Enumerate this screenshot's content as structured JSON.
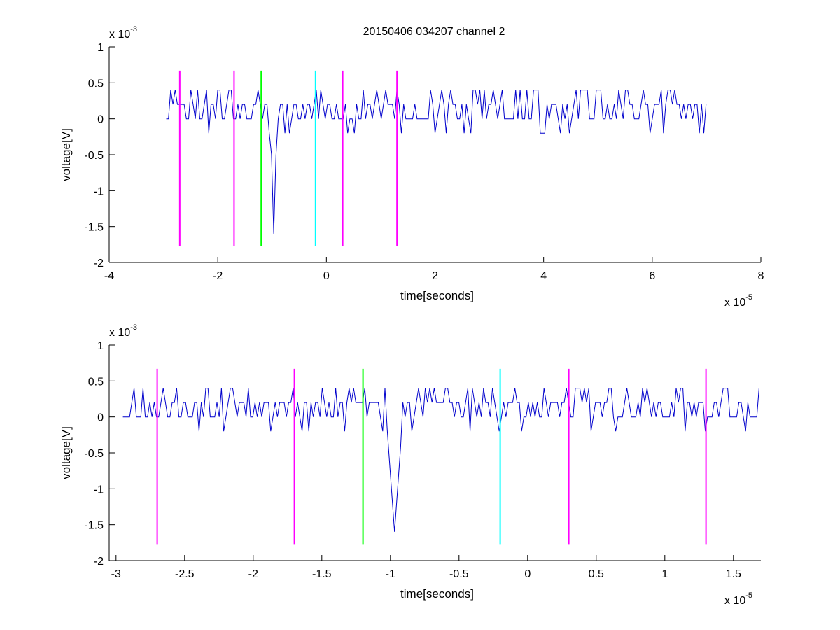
{
  "title": "20150406 034207 channel 2",
  "colors": {
    "signal": "#0000cc",
    "magenta": "#ff00ff",
    "green": "#00ff00",
    "cyan": "#00ffff",
    "axis": "#000000"
  },
  "chart_data": [
    {
      "type": "line",
      "title": "20150406 034207 channel 2",
      "xlabel": "time[seconds]",
      "ylabel": "voltage[V]",
      "x_exponent_base": "x 10",
      "x_exponent": "-5",
      "y_exponent_base": "x 10",
      "y_exponent": "-3",
      "xlim": [
        -4,
        8
      ],
      "ylim": [
        -2,
        1
      ],
      "x_ticks": [
        -4,
        -2,
        0,
        2,
        4,
        6,
        8
      ],
      "x_tick_labels": [
        "-4",
        "-2",
        "0",
        "2",
        "4",
        "6",
        "8"
      ],
      "y_ticks": [
        -2,
        -1.5,
        -1,
        -0.5,
        0,
        0.5,
        1
      ],
      "y_tick_labels": [
        "-2",
        "-1.5",
        "-1",
        "-0.5",
        "0",
        "0.5",
        "1"
      ],
      "grid": false,
      "signal": {
        "x_start": -2.95,
        "x_end": 7.0,
        "levels": [
          -0.2,
          0,
          0.2,
          0.4
        ],
        "baseline": 0.2,
        "spike": {
          "x": -0.97,
          "min": -1.6,
          "width": 0.06
        }
      },
      "markers": [
        {
          "x": -2.7,
          "color": "magenta",
          "top": 0.67,
          "bottom": -1.77
        },
        {
          "x": -1.7,
          "color": "magenta",
          "top": 0.67,
          "bottom": -1.77
        },
        {
          "x": -1.2,
          "color": "green",
          "top": 0.67,
          "bottom": -1.77
        },
        {
          "x": -0.2,
          "color": "cyan",
          "top": 0.67,
          "bottom": -1.77
        },
        {
          "x": 0.3,
          "color": "magenta",
          "top": 0.67,
          "bottom": -1.77
        },
        {
          "x": 1.3,
          "color": "magenta",
          "top": 0.67,
          "bottom": -1.77
        }
      ]
    },
    {
      "type": "line",
      "title": "",
      "xlabel": "time[seconds]",
      "ylabel": "voltage[V]",
      "x_exponent_base": "x 10",
      "x_exponent": "-5",
      "y_exponent_base": "x 10",
      "y_exponent": "-3",
      "xlim": [
        -3.05,
        1.7
      ],
      "ylim": [
        -2,
        1
      ],
      "x_ticks": [
        -3,
        -2.5,
        -2,
        -1.5,
        -1,
        -0.5,
        0,
        0.5,
        1,
        1.5
      ],
      "x_tick_labels": [
        "-3",
        "-2.5",
        "-2",
        "-1.5",
        "-1",
        "-0.5",
        "0",
        "0.5",
        "1",
        "1.5"
      ],
      "y_ticks": [
        -2,
        -1.5,
        -1,
        -0.5,
        0,
        0.5,
        1
      ],
      "y_tick_labels": [
        "-2",
        "-1.5",
        "-1",
        "-0.5",
        "0",
        "0.5",
        "1"
      ],
      "grid": false,
      "signal": {
        "x_start": -2.95,
        "x_end": 1.7,
        "levels": [
          -0.2,
          0,
          0.2,
          0.4
        ],
        "baseline": 0.2,
        "spike": {
          "x": -0.97,
          "min": -1.6,
          "width": 0.06
        }
      },
      "markers": [
        {
          "x": -2.7,
          "color": "magenta",
          "top": 0.67,
          "bottom": -1.77
        },
        {
          "x": -1.7,
          "color": "magenta",
          "top": 0.67,
          "bottom": -1.77
        },
        {
          "x": -1.2,
          "color": "green",
          "top": 0.67,
          "bottom": -1.77
        },
        {
          "x": -0.2,
          "color": "cyan",
          "top": 0.67,
          "bottom": -1.77
        },
        {
          "x": 0.3,
          "color": "magenta",
          "top": 0.67,
          "bottom": -1.77
        },
        {
          "x": 1.3,
          "color": "magenta",
          "top": 0.67,
          "bottom": -1.77
        }
      ]
    }
  ]
}
